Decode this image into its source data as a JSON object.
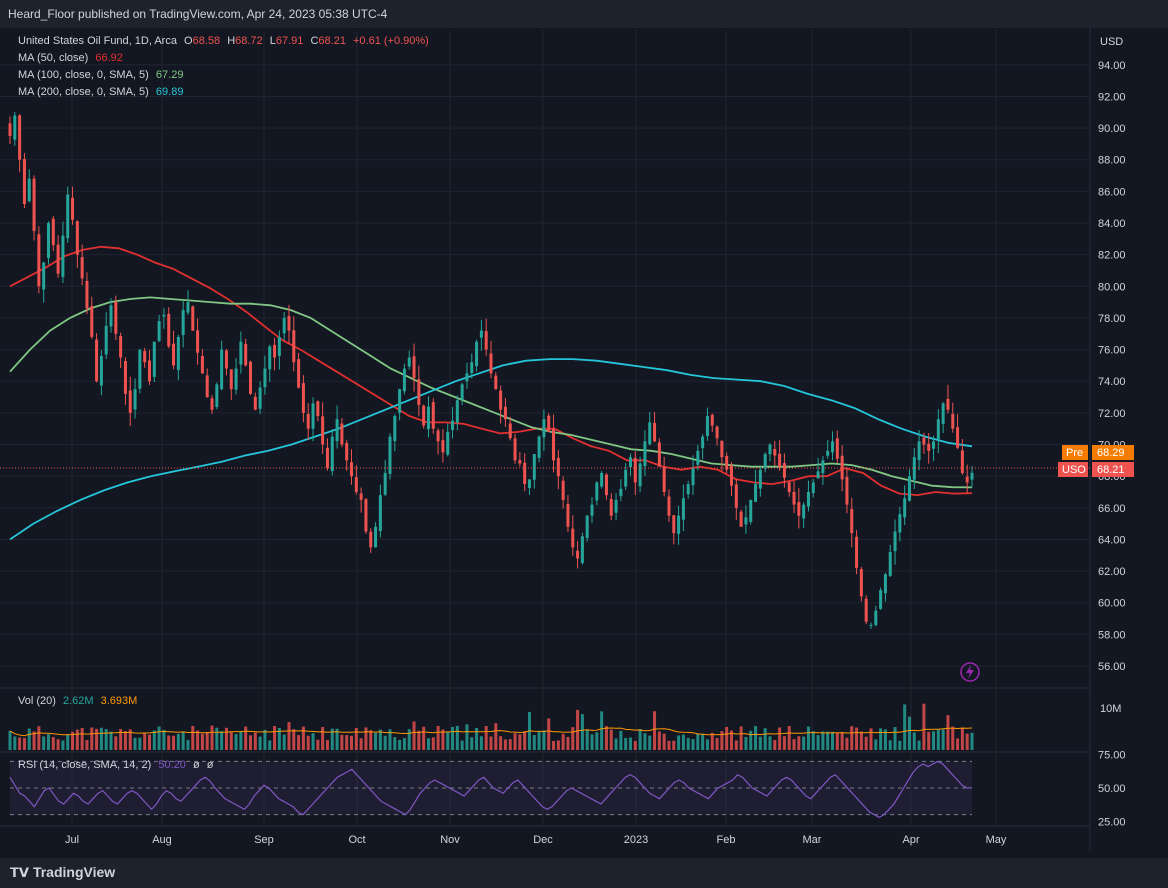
{
  "header": {
    "published": "Heard_Floor published on TradingView.com, Apr 24, 2023 05:38 UTC-4"
  },
  "legend": {
    "symbol": "United States Oil Fund, 1D, Arca",
    "o_label": "O",
    "o": "68.58",
    "h_label": "H",
    "h": "68.72",
    "l_label": "L",
    "l": "67.91",
    "c_label": "C",
    "c": "68.21",
    "change": "+0.61 (+0.90%)",
    "ma50_label": "MA (50, close)",
    "ma50": "66.92",
    "ma100_label": "MA (100, close, 0, SMA, 5)",
    "ma100": "67.29",
    "ma200_label": "MA (200, close, 0, SMA, 5)",
    "ma200": "69.89"
  },
  "vol_legend": {
    "label": "Vol (20)",
    "v1": "2.62M",
    "v2": "3.693M"
  },
  "rsi_legend": {
    "label": "RSI (14, close, SMA, 14, 2)",
    "value": "50.20",
    "x1": "ø",
    "x2": "ø"
  },
  "price_badges": {
    "pre_label": "Pre",
    "pre_value": "68.29",
    "uso_label": "USO",
    "uso_value": "68.21"
  },
  "axis_currency": "USD",
  "vol_axis_label": "10M",
  "footer": {
    "brand": "TradingView"
  },
  "colors": {
    "up": "#26a69a",
    "down": "#ef5350",
    "ma50": "#e0302f",
    "ma100": "#81c784",
    "ma200": "#26c6da",
    "rsi": "#7e57c2"
  },
  "chart_data": [
    {
      "type": "candlestick",
      "title": "United States Oil Fund, 1D, Arca",
      "ylabel": "USD",
      "ylim": [
        54.8,
        96.2
      ],
      "yticks": [
        "94.00",
        "92.00",
        "90.00",
        "88.00",
        "86.00",
        "84.00",
        "82.00",
        "80.00",
        "78.00",
        "76.00",
        "74.00",
        "72.00",
        "70.00",
        "68.00",
        "66.00",
        "64.00",
        "62.00",
        "60.00",
        "58.00",
        "56.00"
      ],
      "x_ticks": [
        "Jul",
        "Aug",
        "Sep",
        "Oct",
        "Nov",
        "Dec",
        "2023",
        "Feb",
        "Mar",
        "Apr",
        "May"
      ],
      "close": [
        89.5,
        90.8,
        88.0,
        85.2,
        86.8,
        83.5,
        80.0,
        81.5,
        84.0,
        82.6,
        80.8,
        83.2,
        85.8,
        84.2,
        82.0,
        80.5,
        78.6,
        76.8,
        74.0,
        75.6,
        77.5,
        78.8,
        77.0,
        75.5,
        73.2,
        72.0,
        73.5,
        76.0,
        75.2,
        74.0,
        76.5,
        77.8,
        78.2,
        76.2,
        75.0,
        76.8,
        78.5,
        79.0,
        77.2,
        75.8,
        74.5,
        73.0,
        72.2,
        73.8,
        76.0,
        74.8,
        73.5,
        74.8,
        76.5,
        75.0,
        73.2,
        72.2,
        73.6,
        74.8,
        76.2,
        75.5,
        76.8,
        78.0,
        77.2,
        75.2,
        73.6,
        72.0,
        71.0,
        72.6,
        71.8,
        70.0,
        68.5,
        70.5,
        71.6,
        70.0,
        69.0,
        68.0,
        67.0,
        66.5,
        64.5,
        63.5,
        64.8,
        66.8,
        68.2,
        70.5,
        71.8,
        73.5,
        74.8,
        75.5,
        74.2,
        72.5,
        71.2,
        72.4,
        71.0,
        70.2,
        69.5,
        70.8,
        71.5,
        72.8,
        73.8,
        74.5,
        75.2,
        76.5,
        77.2,
        76.0,
        74.5,
        73.5,
        72.2,
        71.6,
        70.4,
        69.0,
        68.8,
        67.5,
        67.8,
        69.4,
        70.5,
        71.6,
        70.8,
        69.0,
        68.0,
        66.5,
        64.8,
        63.5,
        62.8,
        64.2,
        65.5,
        66.2,
        67.6,
        68.2,
        66.8,
        65.5,
        66.5,
        67.2,
        68.4,
        69.2,
        67.6,
        68.8,
        70.2,
        71.4,
        70.2,
        68.6,
        67.0,
        65.5,
        64.4,
        65.5,
        66.6,
        67.5,
        68.5,
        69.6,
        70.5,
        71.8,
        71.2,
        70.4,
        69.2,
        68.4,
        67.4,
        66.0,
        64.8,
        65.4,
        66.5,
        67.5,
        68.4,
        69.4,
        70.0,
        69.3,
        68.6,
        67.9,
        67.0,
        66.2,
        65.5,
        66.2,
        67.0,
        67.6,
        68.3,
        69.0,
        69.6,
        70.2,
        69.1,
        67.8,
        66.2,
        64.4,
        62.2,
        60.4,
        58.8,
        58.6,
        59.5,
        60.8,
        61.8,
        63.2,
        64.5,
        65.6,
        66.6,
        68.0,
        69.2,
        70.2,
        70.0,
        69.6,
        70.2,
        71.6,
        72.6,
        72.2,
        71.0,
        69.8,
        68.2,
        67.6,
        68.21
      ],
      "series": [
        {
          "name": "MA (50, close)",
          "values": [
            80.0,
            80.6,
            81.2,
            81.9,
            82.3,
            82.5,
            82.4,
            82.0,
            81.5,
            81.1,
            80.5,
            79.9,
            79.2,
            78.4,
            77.5,
            76.6,
            76.0,
            75.3,
            74.6,
            73.9,
            73.2,
            72.5,
            71.8,
            71.4,
            71.4,
            71.3,
            71.0,
            70.7,
            70.8,
            71.0,
            71.0,
            70.4,
            69.9,
            69.6,
            69.0,
            69.0,
            68.6,
            68.4,
            68.6,
            68.4,
            67.8,
            67.6,
            67.5,
            67.7,
            68.0,
            68.0,
            68.5,
            68.2,
            67.4,
            66.9,
            66.8,
            67.0,
            66.9,
            66.92
          ]
        },
        {
          "name": "MA (100, close, 0, SMA, 5)",
          "values": [
            74.6,
            76.0,
            77.2,
            78.0,
            78.6,
            79.0,
            79.2,
            79.3,
            79.2,
            79.1,
            79.0,
            78.9,
            78.9,
            78.8,
            78.5,
            78.0,
            77.2,
            76.4,
            75.6,
            74.8,
            74.2,
            73.6,
            73.1,
            72.6,
            72.1,
            71.6,
            71.1,
            70.8,
            70.6,
            70.3,
            70.0,
            69.7,
            69.6,
            69.4,
            69.1,
            68.8,
            68.7,
            68.6,
            68.6,
            68.6,
            68.7,
            68.8,
            68.7,
            68.4,
            68.0,
            67.7,
            67.4,
            67.3,
            67.29
          ]
        },
        {
          "name": "MA (200, close, 0, SMA, 5)",
          "values": [
            64.0,
            65.0,
            65.8,
            66.5,
            67.1,
            67.6,
            68.0,
            68.3,
            68.6,
            68.9,
            69.3,
            69.6,
            70.0,
            70.5,
            71.0,
            71.6,
            72.2,
            72.8,
            73.4,
            74.0,
            74.5,
            75.0,
            75.3,
            75.4,
            75.4,
            75.3,
            75.1,
            74.9,
            74.7,
            74.4,
            74.2,
            74.1,
            74.0,
            73.7,
            73.2,
            72.8,
            72.3,
            71.6,
            71.0,
            70.5,
            70.1,
            69.89
          ]
        }
      ]
    },
    {
      "type": "bar",
      "title": "Vol (20)",
      "ylim": [
        0,
        13000000
      ],
      "note": "volume histogram with 20-period MA, last 2.62M, MA 3.693M"
    },
    {
      "type": "line",
      "title": "RSI (14, close, SMA, 14, 2)",
      "ylim": [
        23,
        74
      ],
      "yticks": [
        "75.00",
        "50.00",
        "25.00"
      ],
      "values": [
        58,
        52,
        46,
        44,
        40,
        36,
        42,
        48,
        50,
        45,
        40,
        38,
        42,
        46,
        44,
        40,
        38,
        42,
        46,
        48,
        44,
        40,
        38,
        42,
        46,
        48,
        46,
        42,
        38,
        34,
        38,
        44,
        48,
        46,
        42,
        40,
        44,
        48,
        52,
        56,
        58,
        55,
        50,
        46,
        42,
        40,
        38,
        36,
        34,
        38,
        44,
        48,
        52,
        50,
        46,
        42,
        40,
        38,
        36,
        32,
        30,
        34,
        38,
        42,
        46,
        50,
        54,
        58,
        60,
        62,
        64,
        60,
        56,
        52,
        48,
        44,
        40,
        38,
        36,
        34,
        32,
        30,
        34,
        40,
        46,
        50,
        54,
        56,
        54,
        52,
        50,
        48,
        46,
        44,
        48,
        52,
        56,
        58,
        54,
        50,
        48,
        46,
        50,
        54,
        56,
        52,
        48,
        44,
        40,
        36,
        34,
        36,
        40,
        44,
        48,
        50,
        48,
        46,
        44,
        42,
        40,
        38,
        42,
        46,
        50,
        54,
        58,
        60,
        58,
        54,
        50,
        46,
        44,
        42,
        46,
        50,
        54,
        56,
        54,
        50,
        48,
        46,
        44,
        42,
        46,
        50,
        52,
        54,
        56,
        60,
        58,
        54,
        50,
        48,
        46,
        44,
        48,
        52,
        56,
        58,
        56,
        52,
        48,
        44,
        42,
        46,
        50,
        54,
        58,
        60,
        56,
        52,
        48,
        44,
        40,
        36,
        32,
        30,
        28,
        30,
        34,
        38,
        44,
        50,
        56,
        62,
        66,
        68,
        66,
        68,
        70,
        68,
        64,
        60,
        56,
        52,
        50,
        50.2
      ],
      "levels": [
        70,
        50,
        30
      ]
    }
  ]
}
